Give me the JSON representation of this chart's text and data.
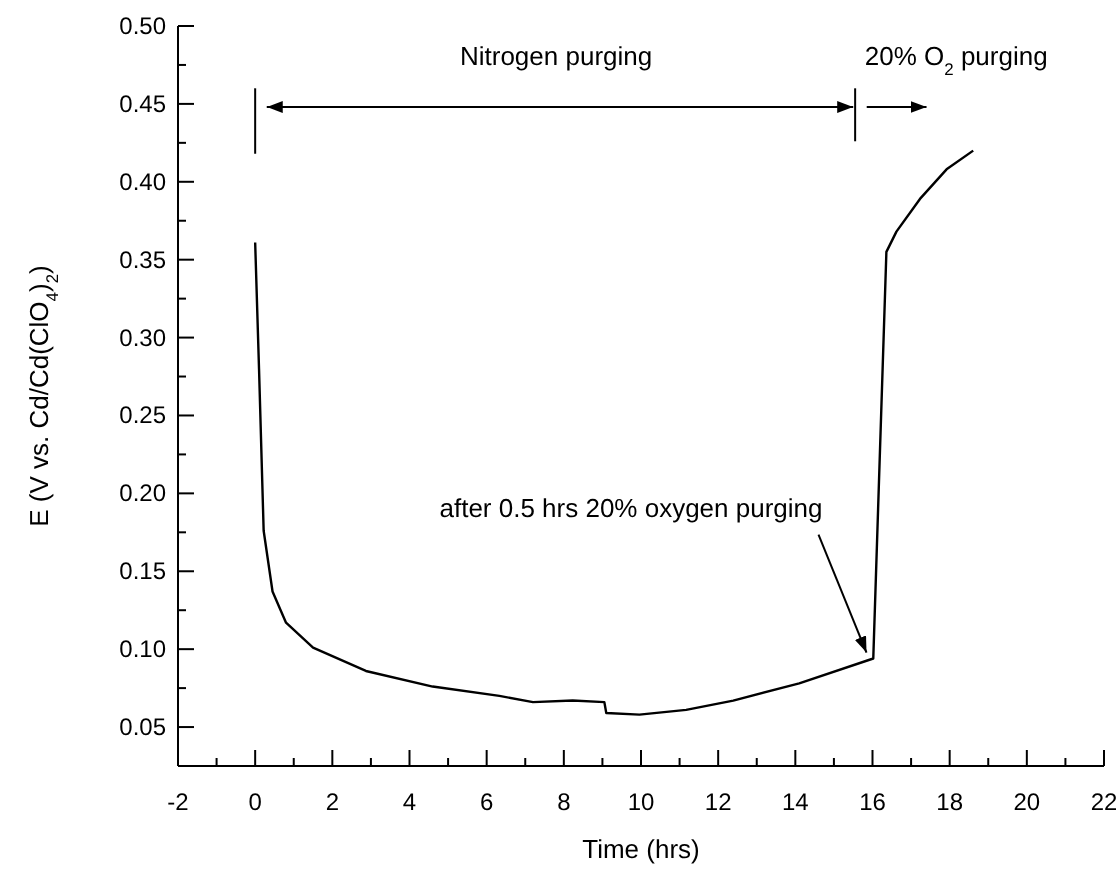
{
  "chart_data": {
    "type": "line",
    "xlabel": "Time (hrs)",
    "ylabel": "E (V vs. Cd/Cd(ClO$_{4}$)$_{2}$)",
    "xlim": [
      -2,
      22
    ],
    "xticks": [
      -2,
      {
        "value": -1,
        "label": null
      },
      0,
      {
        "value": 1,
        "label": null
      },
      2,
      {
        "value": 3,
        "label": null
      },
      4,
      {
        "value": 5,
        "label": null
      },
      6,
      {
        "value": 7,
        "label": null
      },
      8,
      {
        "value": 9,
        "label": null
      },
      10,
      {
        "value": 11,
        "label": null
      },
      12,
      {
        "value": 13,
        "label": null
      },
      14,
      {
        "value": 15,
        "label": null
      },
      16,
      {
        "value": 17,
        "label": null
      },
      18,
      {
        "value": 19,
        "label": null
      },
      20,
      {
        "value": 21,
        "label": null
      },
      22
    ],
    "ylim": [
      0.025,
      0.5
    ],
    "yticks": [
      {
        "value": 0.05,
        "label": "0.05"
      },
      {
        "value": 0.075,
        "label": null
      },
      {
        "value": 0.1,
        "label": "0.10"
      },
      {
        "value": 0.125,
        "label": null
      },
      {
        "value": 0.15,
        "label": "0.15"
      },
      {
        "value": 0.175,
        "label": null
      },
      {
        "value": 0.2,
        "label": "0.20"
      },
      {
        "value": 0.225,
        "label": null
      },
      {
        "value": 0.25,
        "label": "0.25"
      },
      {
        "value": 0.275,
        "label": null
      },
      {
        "value": 0.3,
        "label": "0.30"
      },
      {
        "value": 0.325,
        "label": null
      },
      {
        "value": 0.35,
        "label": "0.35"
      },
      {
        "value": 0.375,
        "label": null
      },
      {
        "value": 0.4,
        "label": "0.40"
      },
      {
        "value": 0.425,
        "label": null
      },
      {
        "value": 0.45,
        "label": "0.45"
      },
      {
        "value": 0.475,
        "label": null
      },
      {
        "value": 0.5,
        "label": "0.50"
      }
    ],
    "marker": "none",
    "line_style": "solid",
    "annotations": [
      "Nitrogen purging",
      "20% O$_{2}$ purging",
      {
        "text": "after 0.5 hrs 20% oxygen purging",
        "x": 16,
        "y": 0.094
      }
    ],
    "series": [
      {
        "color": "#000000",
        "x": [
          0,
          0.1,
          0.22,
          0.45,
          0.8,
          1.5,
          2.87,
          4.6,
          6.33,
          7.2,
          8.23,
          9.05,
          9.1,
          9.96,
          11.17,
          12.39,
          14.1,
          16.02,
          16.36,
          16.62,
          17.23,
          17.92,
          18.61
        ],
        "values": [
          0.361,
          0.28,
          0.176,
          0.137,
          0.117,
          0.101,
          0.086,
          0.076,
          0.07,
          0.066,
          0.067,
          0.066,
          0.059,
          0.058,
          0.061,
          0.067,
          0.078,
          0.094,
          0.355,
          0.368,
          0.389,
          0.408,
          0.42
        ]
      }
    ]
  }
}
